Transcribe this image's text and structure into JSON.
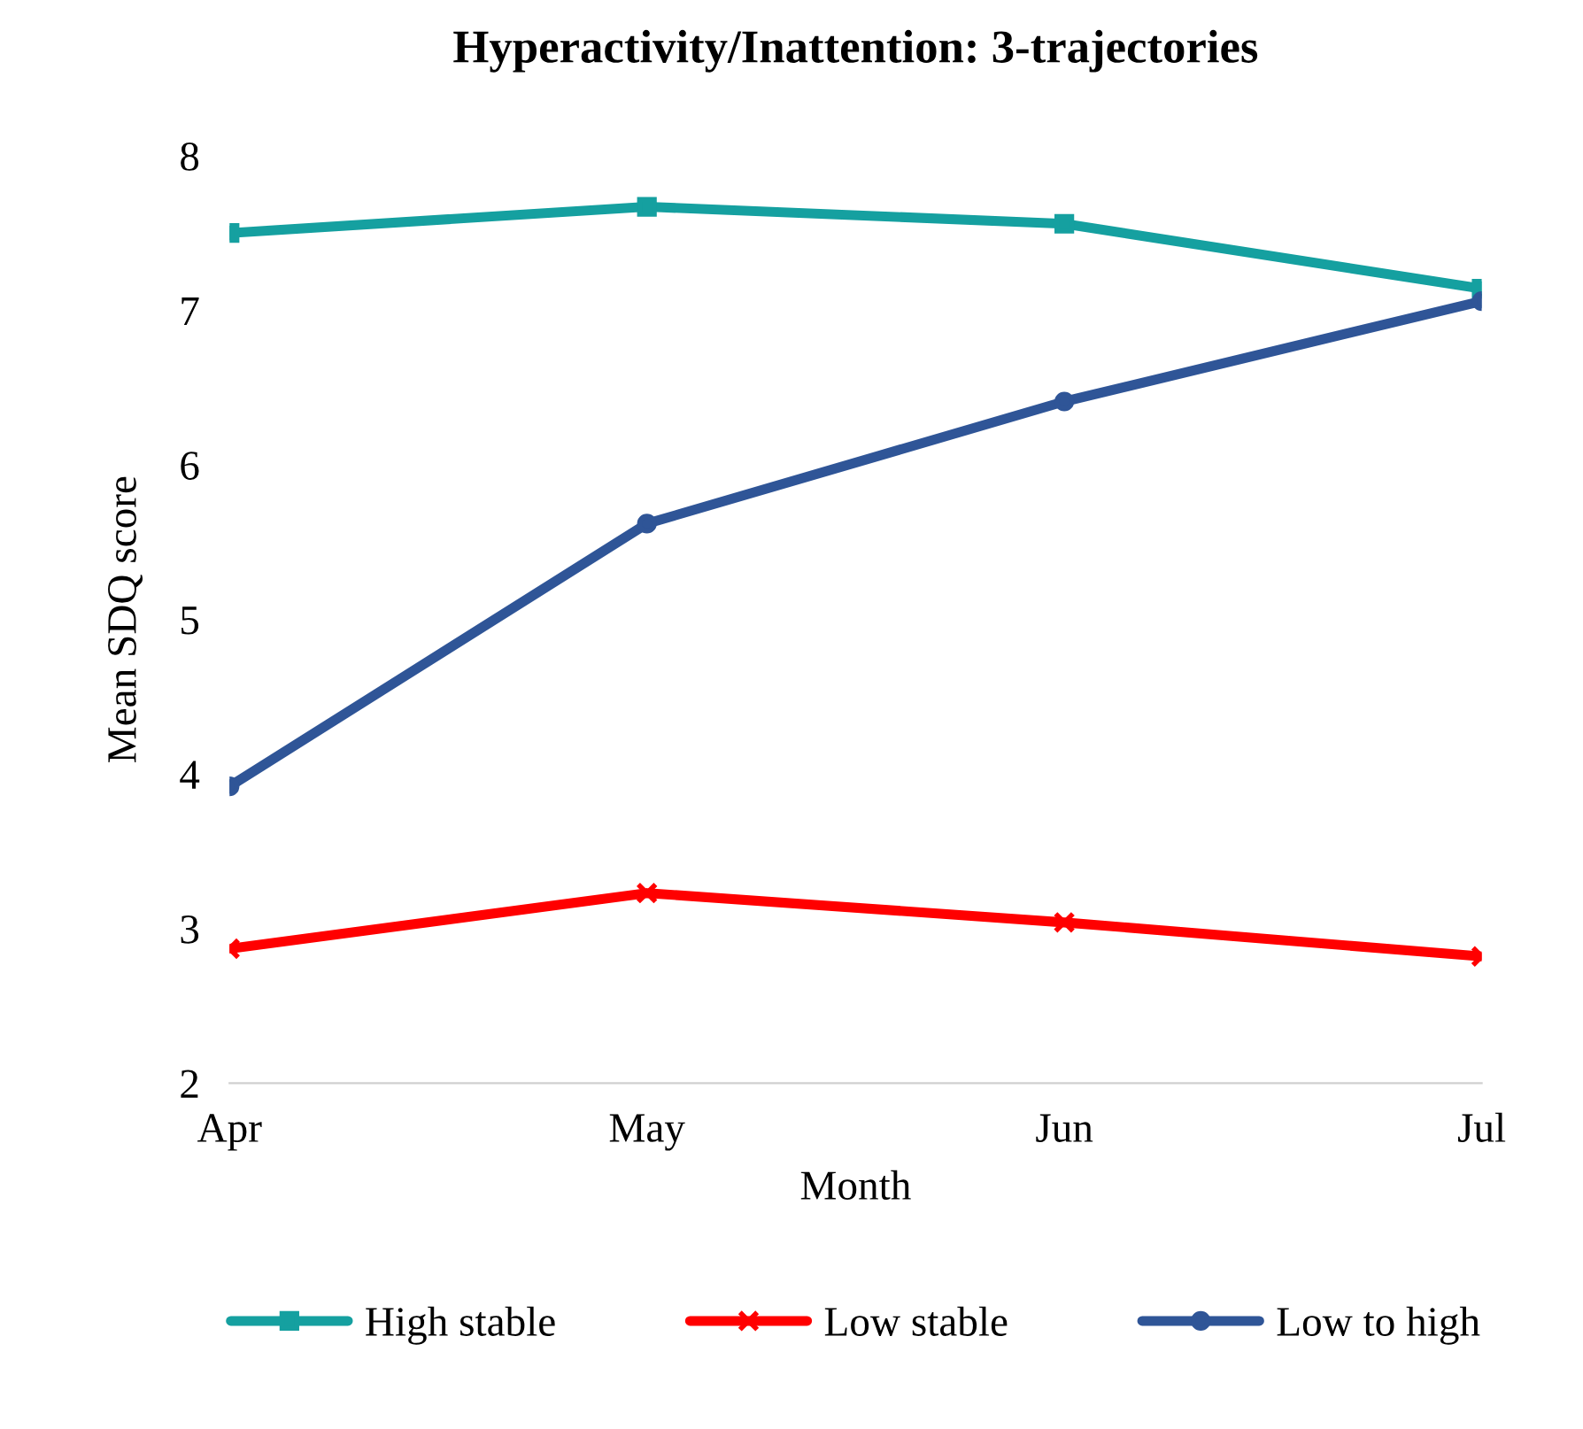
{
  "chart_data": {
    "type": "line",
    "title": "Hyperactivity/Inattention: 3-trajectories",
    "xlabel": "Month",
    "ylabel": "Mean SDQ score",
    "categories": [
      "Apr",
      "May",
      "Jun",
      "Jul"
    ],
    "series": [
      {
        "name": "High stable",
        "color": "#15a0a0",
        "marker": "square",
        "values": [
          7.5,
          7.67,
          7.56,
          7.14
        ]
      },
      {
        "name": "Low stable",
        "color": "#ff0000",
        "marker": "cross",
        "values": [
          2.87,
          3.23,
          3.04,
          2.82
        ]
      },
      {
        "name": "Low to high",
        "color": "#2f5597",
        "marker": "circle",
        "values": [
          3.92,
          5.62,
          6.41,
          7.06
        ]
      }
    ],
    "ylim": [
      2,
      8
    ],
    "yticks": [
      2,
      3,
      4,
      5,
      6,
      7,
      8
    ],
    "grid": false,
    "legend": "bottom",
    "line_style": "solid"
  }
}
